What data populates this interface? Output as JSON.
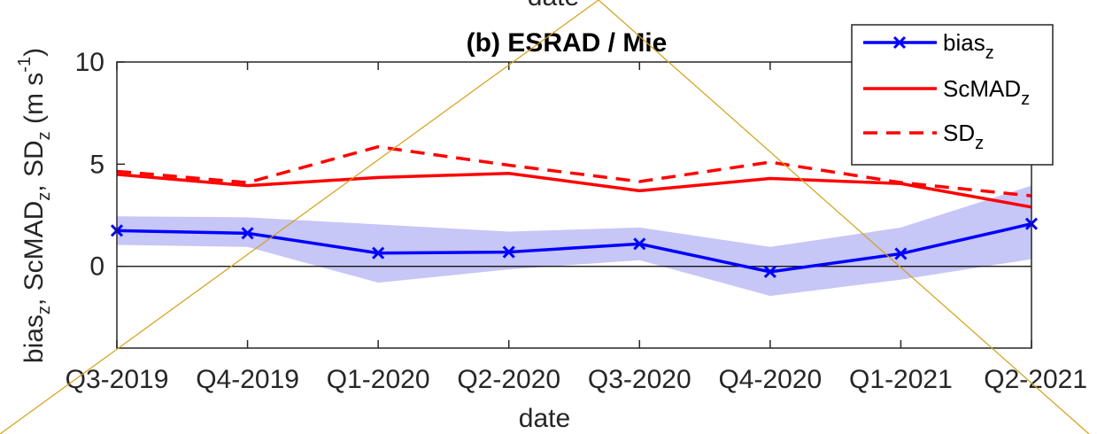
{
  "colors": {
    "bias": "#0000ff",
    "band": "#c6c6f7",
    "scmad": "#ff0000",
    "sd": "#ff0000",
    "axis": "#262626",
    "annotation": "#d4a017"
  },
  "chart_data": {
    "type": "line",
    "title": "(b) ESRAD / Mie",
    "top_clipped_label": "date",
    "xlabel": "date",
    "ylabel": {
      "parts": [
        "bias",
        "z",
        ", ScMAD",
        "z",
        ", SD",
        "z",
        " (m s",
        "-1",
        ")"
      ]
    },
    "categories": [
      "Q3-2019",
      "Q4-2019",
      "Q1-2020",
      "Q2-2020",
      "Q3-2020",
      "Q4-2020",
      "Q1-2021",
      "Q2-2021"
    ],
    "ylim": [
      -4,
      10
    ],
    "yticks": [
      {
        "value": 0,
        "label": "0"
      },
      {
        "value": 5,
        "label": "5"
      },
      {
        "value": 10,
        "label": "10"
      }
    ],
    "grid": false,
    "zero_line": true,
    "legend_position": "top-right",
    "series": [
      {
        "key": "bias",
        "name": "bias",
        "name_sub": "z",
        "style": "solid-marker-x",
        "values": [
          1.75,
          1.62,
          0.65,
          0.7,
          1.1,
          -0.27,
          0.62,
          2.08
        ]
      },
      {
        "key": "scmad",
        "name": "ScMAD",
        "name_sub": "z",
        "style": "solid",
        "values": [
          4.5,
          3.95,
          4.35,
          4.55,
          3.7,
          4.3,
          4.05,
          2.9
        ]
      },
      {
        "key": "sd",
        "name": "SD",
        "name_sub": "z",
        "style": "dashed",
        "values": [
          4.65,
          4.1,
          5.85,
          4.95,
          4.15,
          5.1,
          4.1,
          3.45
        ]
      }
    ],
    "band": {
      "of_series": "bias",
      "lower": [
        1.05,
        0.95,
        -0.8,
        -0.15,
        0.3,
        -1.45,
        -0.65,
        0.35
      ],
      "upper": [
        2.45,
        2.4,
        2.05,
        1.7,
        1.9,
        0.95,
        1.9,
        3.95
      ]
    }
  }
}
